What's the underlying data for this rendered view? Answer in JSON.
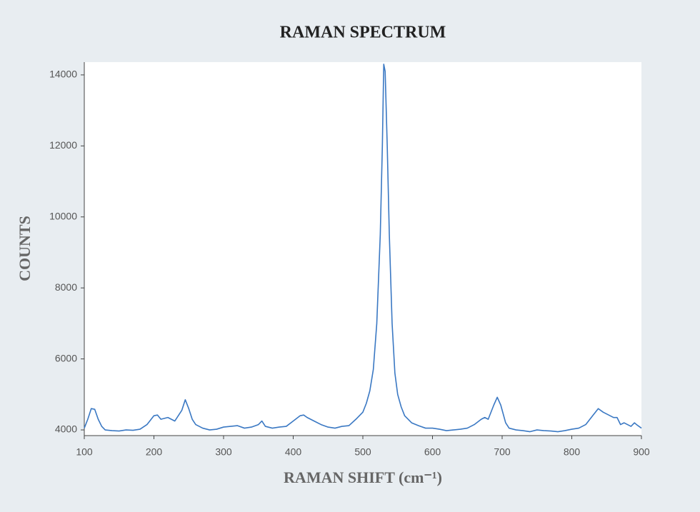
{
  "chart_data": {
    "type": "line",
    "title": "RAMAN SPECTRUM",
    "x_label": "RAMAN SHIFT (cm⁻¹)",
    "y_label": "COUNTS",
    "color": "#3a78c3",
    "x": [
      100,
      105,
      110,
      115,
      120,
      125,
      130,
      140,
      150,
      160,
      170,
      180,
      190,
      200,
      205,
      210,
      220,
      230,
      240,
      245,
      250,
      255,
      260,
      270,
      280,
      290,
      300,
      310,
      320,
      330,
      340,
      350,
      355,
      360,
      370,
      380,
      390,
      400,
      410,
      415,
      420,
      430,
      440,
      450,
      460,
      470,
      480,
      490,
      500,
      505,
      510,
      515,
      520,
      525,
      528,
      530,
      532,
      535,
      538,
      542,
      546,
      550,
      555,
      560,
      570,
      580,
      590,
      600,
      610,
      620,
      630,
      640,
      650,
      660,
      670,
      675,
      680,
      688,
      693,
      698,
      705,
      710,
      720,
      730,
      740,
      750,
      760,
      770,
      780,
      790,
      800,
      810,
      820,
      830,
      838,
      845,
      855,
      860,
      865,
      870,
      875,
      880,
      885,
      890,
      893,
      900
    ],
    "values": [
      4050,
      4300,
      4600,
      4580,
      4300,
      4100,
      4000,
      3980,
      3970,
      4000,
      3990,
      4020,
      4150,
      4400,
      4420,
      4300,
      4350,
      4250,
      4550,
      4850,
      4600,
      4300,
      4150,
      4050,
      4000,
      4020,
      4080,
      4100,
      4120,
      4050,
      4080,
      4150,
      4250,
      4100,
      4050,
      4080,
      4100,
      4250,
      4400,
      4420,
      4350,
      4250,
      4150,
      4080,
      4050,
      4100,
      4120,
      4300,
      4500,
      4750,
      5100,
      5700,
      7000,
      9500,
      12000,
      14300,
      14100,
      12000,
      9500,
      7000,
      5600,
      5000,
      4650,
      4400,
      4200,
      4120,
      4050,
      4050,
      4020,
      3980,
      4000,
      4020,
      4050,
      4150,
      4300,
      4350,
      4300,
      4700,
      4920,
      4700,
      4200,
      4050,
      4000,
      3980,
      3950,
      4000,
      3980,
      3970,
      3950,
      3980,
      4020,
      4050,
      4150,
      4400,
      4600,
      4500,
      4400,
      4350,
      4350,
      4150,
      4200,
      4150,
      4100,
      4200,
      4150,
      4050
    ],
    "xlim": [
      100,
      900
    ],
    "ylim": [
      3840,
      14360
    ],
    "xticks": [
      100,
      200,
      300,
      400,
      500,
      600,
      700,
      800,
      900
    ],
    "yticks": [
      4000,
      6000,
      8000,
      10000,
      12000,
      14000
    ]
  }
}
